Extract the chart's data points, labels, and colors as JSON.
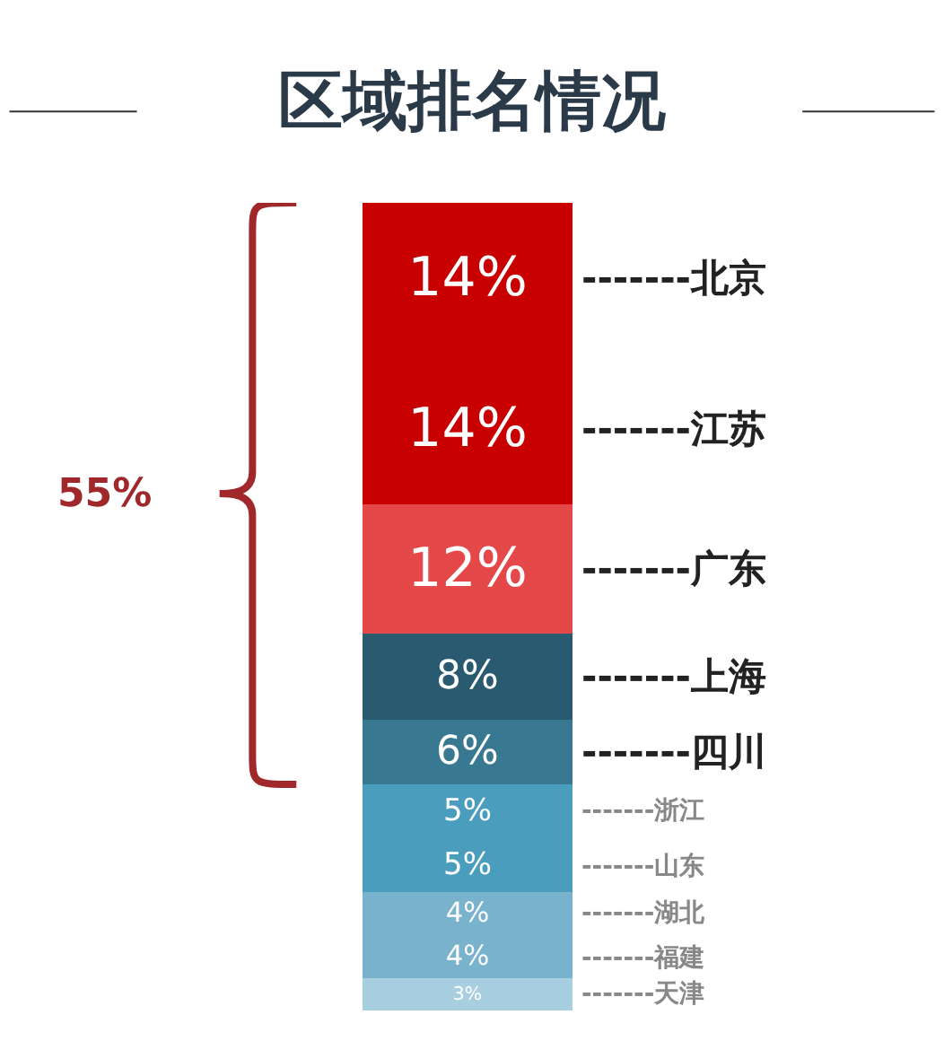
{
  "chart_data": {
    "type": "bar",
    "stacked": true,
    "title": "区域排名情况",
    "categories": [
      null
    ],
    "legend": false,
    "annotations": [
      "55%"
    ],
    "series": [
      {
        "name": "-------天津",
        "color": "#a8cfe0",
        "values": [
          3
        ],
        "value_labels": [
          "3%"
        ]
      },
      {
        "name": "-------福建",
        "color": "#78b2cc",
        "values": [
          4
        ],
        "value_labels": [
          "4%"
        ]
      },
      {
        "name": "-------湖北",
        "color": "#78b2cc",
        "values": [
          4
        ],
        "value_labels": [
          "4%"
        ]
      },
      {
        "name": "-------山东",
        "color": "#4a9dbd",
        "values": [
          5
        ],
        "value_labels": [
          "5%"
        ]
      },
      {
        "name": "-------浙江",
        "color": "#4a9dbd",
        "values": [
          5
        ],
        "value_labels": [
          "5%"
        ]
      },
      {
        "name": "-------四川",
        "color": "#387891",
        "values": [
          6
        ],
        "value_labels": [
          "6%"
        ]
      },
      {
        "name": "-------上海",
        "color": "#2a5a70",
        "values": [
          8
        ],
        "value_labels": [
          "8%"
        ]
      },
      {
        "name": "-------广东",
        "color": "#e54848",
        "values": [
          12
        ],
        "value_labels": [
          "12%"
        ]
      },
      {
        "name": "-------江苏",
        "color": "#c80000",
        "values": [
          14
        ],
        "value_labels": [
          "14%"
        ]
      },
      {
        "name": "-------北京",
        "color": "#c80000",
        "values": [
          14
        ],
        "value_labels": [
          "14%"
        ]
      }
    ]
  }
}
